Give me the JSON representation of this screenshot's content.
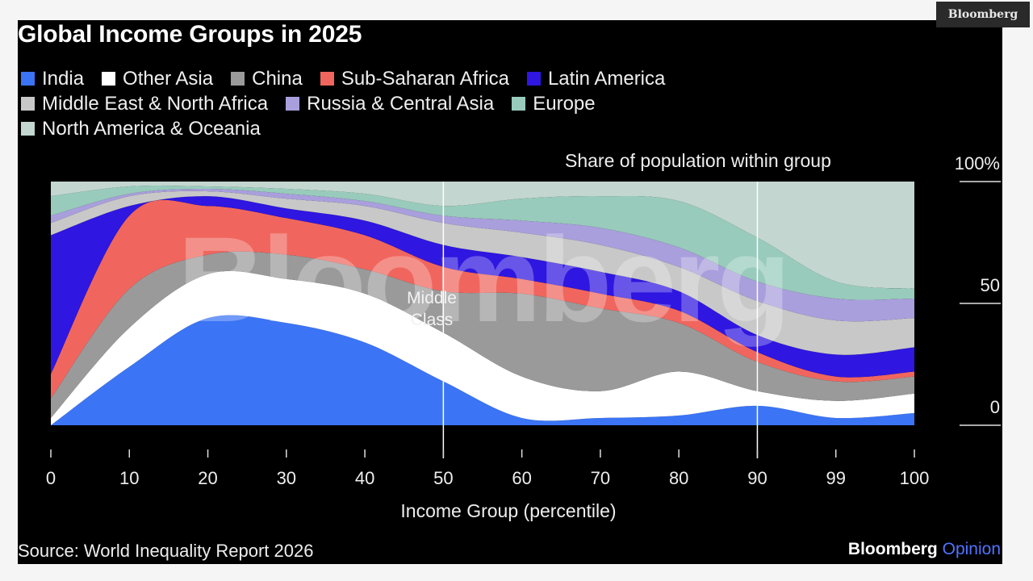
{
  "header": {
    "brand_tab": "Bloomberg",
    "title": "Global Income Groups in 2025"
  },
  "legend": {
    "rows": [
      [
        {
          "label": "India",
          "color": "#3b74f5"
        },
        {
          "label": "Other Asia",
          "color": "#ffffff"
        },
        {
          "label": "China",
          "color": "#9a9a9a"
        },
        {
          "label": "Sub-Saharan Africa",
          "color": "#f0665e"
        },
        {
          "label": "Latin America",
          "color": "#2f16e0"
        }
      ],
      [
        {
          "label": "Middle East & North Africa",
          "color": "#c8c8c8"
        },
        {
          "label": "Russia & Central Asia",
          "color": "#a99fdc"
        },
        {
          "label": "Europe",
          "color": "#98cbbb"
        }
      ],
      [
        {
          "label": "North America & Oceania",
          "color": "#c3d6d0"
        }
      ]
    ]
  },
  "chart_data": {
    "type": "area",
    "stacked": true,
    "normalized": true,
    "title": "Global Income Groups in 2025",
    "ylabel": "Share of population within group",
    "xlabel": "Income Group (percentile)",
    "x_tick_labels": [
      "0",
      "10",
      "20",
      "30",
      "40",
      "50",
      "60",
      "70",
      "80",
      "90",
      "99",
      "100"
    ],
    "y_tick_labels": [
      "100%",
      "50",
      "0"
    ],
    "y_ticks": [
      100,
      50,
      0
    ],
    "ylim": [
      0,
      100
    ],
    "grid": false,
    "legend_position": "top",
    "x": [
      0,
      10,
      20,
      30,
      40,
      50,
      60,
      70,
      80,
      90,
      99,
      100
    ],
    "series": [
      {
        "name": "India",
        "color": "#3b74f5",
        "values": [
          0,
          24,
          44,
          42,
          34,
          18,
          3,
          3,
          4,
          8,
          3,
          5
        ]
      },
      {
        "name": "Other Asia",
        "color": "#ffffff",
        "values": [
          3,
          16,
          18,
          18,
          20,
          20,
          17,
          11,
          18,
          6,
          7,
          8
        ]
      },
      {
        "name": "China",
        "color": "#9a9a9a",
        "values": [
          8,
          16,
          8,
          10,
          10,
          17,
          34,
          34,
          20,
          12,
          8,
          7
        ]
      },
      {
        "name": "Sub-Saharan Africa",
        "color": "#f0665e",
        "values": [
          10,
          30,
          20,
          15,
          14,
          10,
          6,
          6,
          5,
          4,
          2,
          2
        ]
      },
      {
        "name": "Latin America",
        "color": "#2f16e0",
        "values": [
          57,
          4,
          4,
          4,
          6,
          9,
          9,
          9,
          8,
          7,
          9,
          10
        ]
      },
      {
        "name": "Middle East & North Africa",
        "color": "#c8c8c8",
        "values": [
          5,
          4,
          2,
          4,
          6,
          9,
          10,
          11,
          10,
          14,
          14,
          12
        ]
      },
      {
        "name": "Russia & Central Asia",
        "color": "#a99fdc",
        "values": [
          3,
          1,
          1,
          2,
          2,
          3,
          5,
          7,
          8,
          8,
          9,
          8
        ]
      },
      {
        "name": "Europe",
        "color": "#98cbbb",
        "values": [
          8,
          3,
          1,
          2,
          3,
          4,
          9,
          13,
          19,
          18,
          7,
          4
        ]
      },
      {
        "name": "North America & Oceania",
        "color": "#c3d6d0",
        "values": [
          6,
          2,
          2,
          3,
          5,
          10,
          7,
          6,
          8,
          23,
          41,
          44
        ]
      }
    ],
    "annotations": [
      {
        "text": "Middle Class",
        "lines": [
          "Middle",
          "Class"
        ],
        "x_range": [
          50,
          90
        ]
      }
    ],
    "reference_lines_x": [
      50,
      90
    ],
    "watermark": "Bloomberg"
  },
  "footer": {
    "source": "Source: World Inequality Report 2026",
    "brand": "Bloomberg",
    "brand_suffix": "Opinion"
  }
}
